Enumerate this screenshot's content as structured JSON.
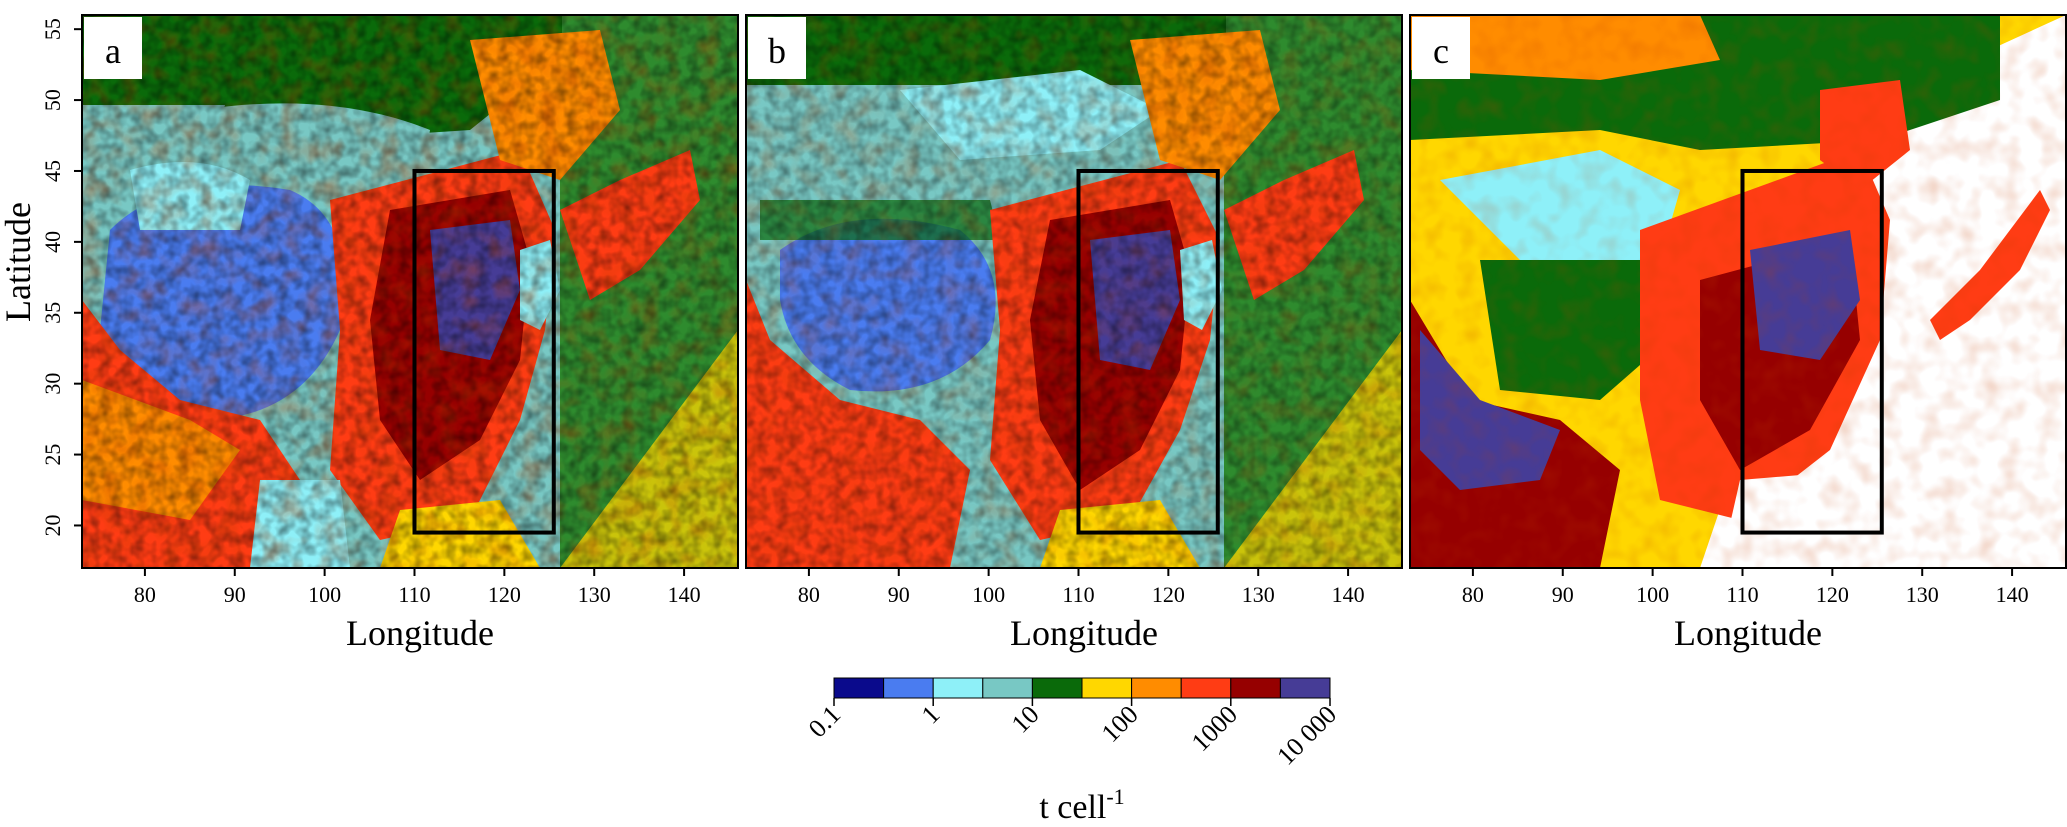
{
  "figure": {
    "y_axis_label": "Latitude",
    "x_axis_label": "Longitude",
    "lat_ticks": [
      "55",
      "50",
      "45",
      "40",
      "35",
      "30",
      "25",
      "20"
    ],
    "lon_ticks": [
      "80",
      "90",
      "100",
      "110",
      "120",
      "130",
      "140"
    ],
    "extent": {
      "lon": [
        73,
        146
      ],
      "lat": [
        17,
        56
      ]
    },
    "study_box": {
      "lon": [
        110,
        125.5
      ],
      "lat": [
        19.5,
        45
      ]
    },
    "panels": [
      {
        "label": "a"
      },
      {
        "label": "b"
      },
      {
        "label": "c"
      }
    ]
  },
  "legend": {
    "unit_base": "t cell",
    "unit_exp": "-1",
    "tick_labels": [
      "0.1",
      "1",
      "10",
      "100",
      "1000",
      "10 000"
    ],
    "colors": [
      "#0a0a8c",
      "#4a7cf0",
      "#8ef0f8",
      "#78c8c4",
      "#0a6a0a",
      "#ffd700",
      "#ff8c00",
      "#ff3c14",
      "#960000",
      "#463c96"
    ]
  }
}
